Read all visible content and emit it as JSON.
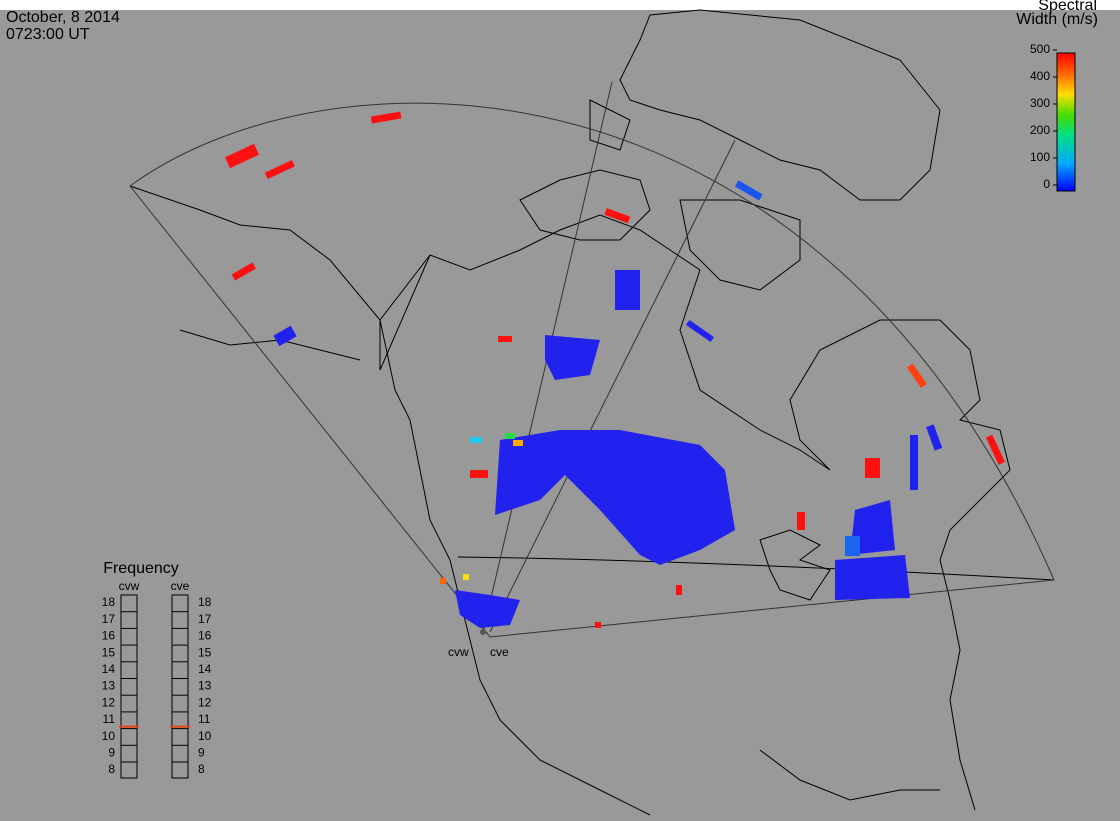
{
  "header": {
    "date": "October, 8 2014",
    "time": "0723:00 UT"
  },
  "colorbar": {
    "title": [
      "Spectral",
      "Width (m/s)"
    ],
    "range": [
      0,
      500
    ],
    "ticks": [
      0,
      100,
      200,
      300,
      400,
      500
    ]
  },
  "frequency": {
    "title": "Frequency",
    "range": [
      8,
      18
    ],
    "ticks": [
      8,
      9,
      10,
      11,
      12,
      13,
      14,
      15,
      16,
      17,
      18
    ],
    "radars": [
      {
        "name": "cvw",
        "value": 10.6
      },
      {
        "name": "cve",
        "value": 10.6
      }
    ]
  },
  "map": {
    "radar_sites": [
      "cvw",
      "cve"
    ]
  }
}
